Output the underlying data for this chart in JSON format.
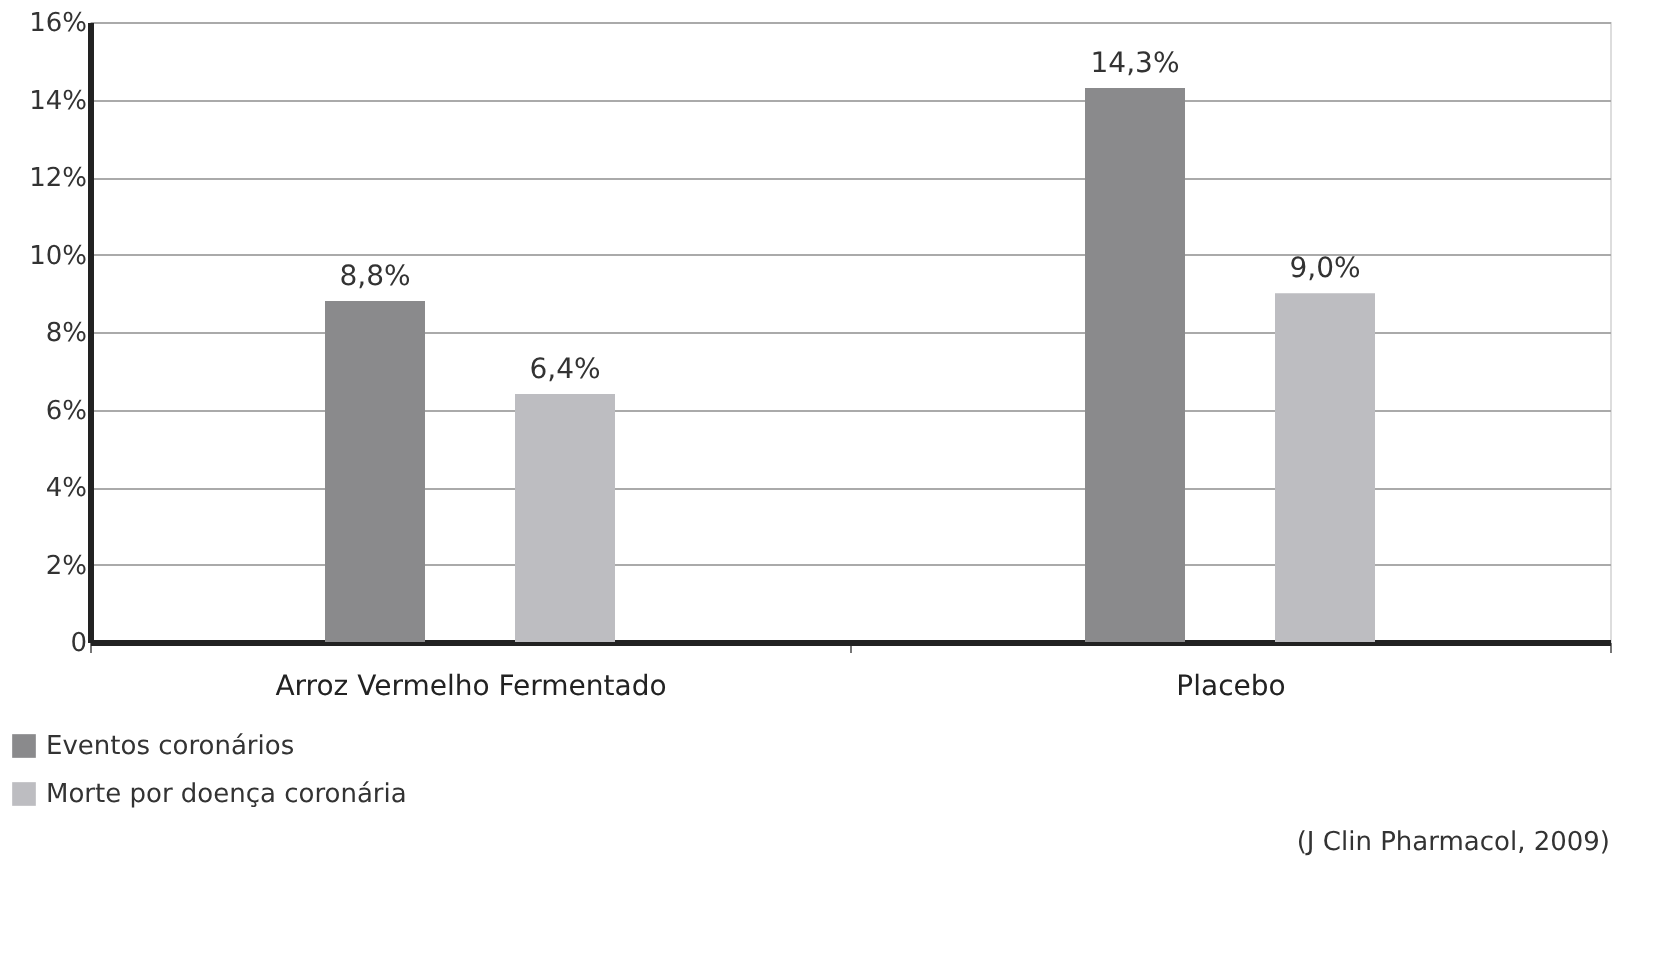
{
  "chart_data": {
    "type": "bar",
    "categories": [
      "Arroz Vermelho Fermentado",
      "Placebo"
    ],
    "series": [
      {
        "name": "Eventos coronários",
        "color": "#8a8a8c",
        "values": [
          8.8,
          14.3
        ],
        "value_labels": [
          "8,8%",
          "14,3%"
        ]
      },
      {
        "name": "Morte por doença coronária",
        "color": "#bdbdc1",
        "values": [
          6.4,
          9.0
        ],
        "value_labels": [
          "6,4%",
          "9,0%"
        ]
      }
    ],
    "ylim": [
      0,
      16
    ],
    "yticks": [
      0,
      {
        "value": 2,
        "label": "2%"
      },
      {
        "value": 4,
        "label": "4%"
      },
      {
        "value": 6,
        "label": "6%"
      },
      {
        "value": 8,
        "label": "8%"
      },
      {
        "value": 10,
        "label": "10%"
      },
      {
        "value": 12,
        "label": "12%"
      },
      {
        "value": 14,
        "label": "14%"
      },
      {
        "value": 16,
        "label": "16%"
      }
    ],
    "grid": "y",
    "legend": "bottom left",
    "annotations": [
      "(J Clin Pharmacol, 2009)"
    ]
  }
}
